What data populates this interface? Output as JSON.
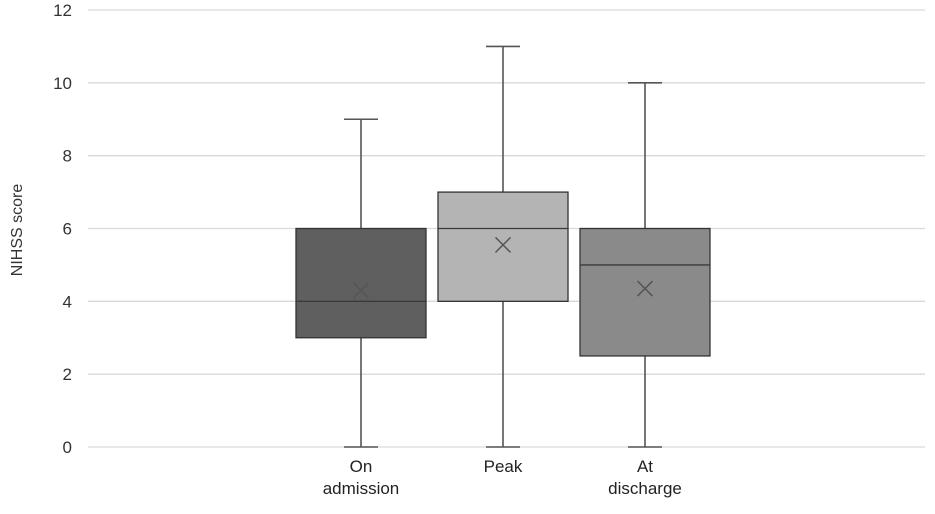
{
  "chart_data": {
    "type": "box",
    "ylabel": "NIHSS score",
    "ylim": [
      0,
      12
    ],
    "yticks": [
      0,
      2,
      4,
      6,
      8,
      10,
      12
    ],
    "grid": true,
    "categories": [
      {
        "label_lines": [
          "On",
          "admission"
        ],
        "min": 0,
        "q1": 3,
        "median": 4,
        "q3": 6,
        "max": 9,
        "mean": 4.3,
        "color": "#5f5f5f"
      },
      {
        "label_lines": [
          "Peak"
        ],
        "min": 0,
        "q1": 4,
        "median": 6,
        "q3": 7,
        "max": 11,
        "mean": 5.55,
        "color": "#b4b4b4"
      },
      {
        "label_lines": [
          "At",
          "discharge"
        ],
        "min": 0,
        "q1": 2.5,
        "median": 5,
        "q3": 6,
        "max": 10,
        "mean": 4.35,
        "color": "#8a8a8a"
      }
    ]
  }
}
